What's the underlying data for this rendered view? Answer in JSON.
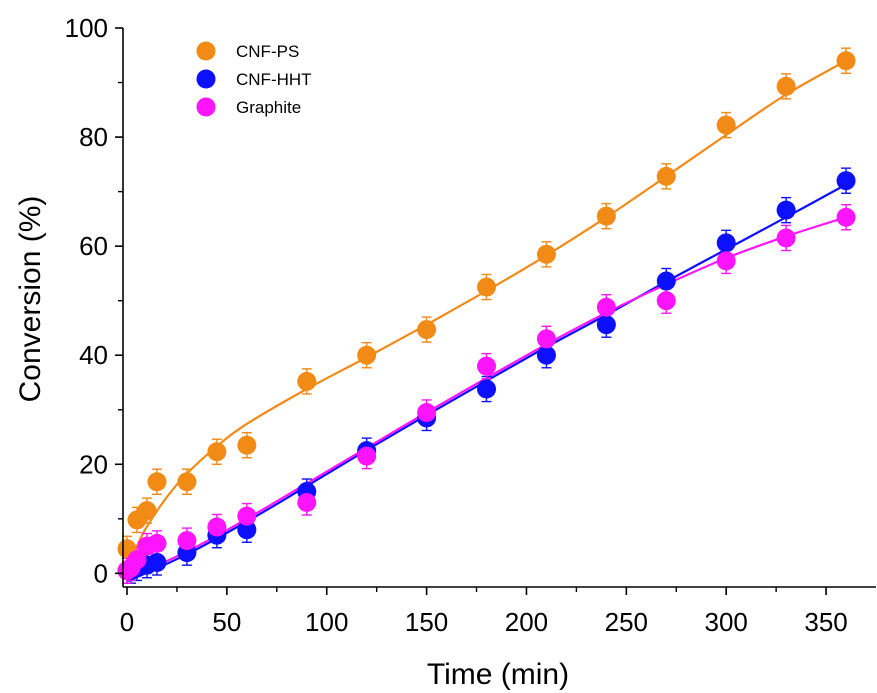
{
  "chart_data": {
    "type": "scatter",
    "title": "",
    "xlabel": "Time (min)",
    "ylabel": "Conversion (%)",
    "xlim": [
      -2,
      375
    ],
    "ylim": [
      -2.5,
      100
    ],
    "x_ticks": [
      0,
      50,
      100,
      150,
      200,
      250,
      300,
      350
    ],
    "x_tick_labels": [
      "0",
      "50",
      "100",
      "150",
      "200",
      "250",
      "300",
      "350"
    ],
    "y_ticks": [
      0,
      20,
      40,
      60,
      80,
      100
    ],
    "y_tick_labels": [
      "0",
      "20",
      "40",
      "60",
      "80",
      "100"
    ],
    "grid": false,
    "legend_position": "top-left",
    "error_bar": 2.3,
    "series": [
      {
        "name": "CNF-PS",
        "color": "#f28a16",
        "x": [
          0,
          5,
          10,
          15,
          30,
          45,
          60,
          90,
          120,
          150,
          180,
          210,
          240,
          270,
          300,
          330,
          360
        ],
        "y": [
          4.5,
          9.8,
          11.5,
          16.8,
          16.8,
          22.3,
          23.5,
          35.2,
          40.0,
          44.7,
          52.5,
          58.5,
          65.5,
          72.8,
          82.2,
          89.3,
          94.0
        ],
        "fit_x": [
          0,
          5,
          10,
          20,
          30,
          45,
          60,
          90,
          120,
          150,
          180,
          210,
          240,
          270,
          300,
          330,
          360
        ],
        "fit_y": [
          0.8,
          5.0,
          8.6,
          14.0,
          18.3,
          23.3,
          27.4,
          33.8,
          39.6,
          45.6,
          51.8,
          58.3,
          65.3,
          72.8,
          80.4,
          87.8,
          94.0
        ]
      },
      {
        "name": "CNF-HHT",
        "color": "#0c10ff",
        "x": [
          0,
          2,
          5,
          10,
          15,
          30,
          45,
          60,
          90,
          120,
          150,
          180,
          210,
          240,
          270,
          300,
          330,
          360
        ],
        "y": [
          0.5,
          0.5,
          1.0,
          1.5,
          2.0,
          3.8,
          7.0,
          8.0,
          15.0,
          22.5,
          28.5,
          33.8,
          40.0,
          45.6,
          53.6,
          60.6,
          66.6,
          72.0
        ],
        "fit_x": [
          0,
          30,
          60,
          90,
          120,
          150,
          180,
          210,
          240,
          270,
          300,
          330,
          360
        ],
        "fit_y": [
          -1.5,
          3.5,
          9.5,
          16.0,
          22.6,
          29.0,
          35.3,
          41.5,
          47.4,
          53.5,
          59.4,
          65.3,
          71.3
        ]
      },
      {
        "name": "Graphite",
        "color": "#ff14ff",
        "x": [
          0,
          2,
          5,
          10,
          15,
          30,
          45,
          60,
          90,
          120,
          150,
          180,
          210,
          240,
          270,
          300,
          330,
          360
        ],
        "y": [
          0.5,
          1.0,
          2.5,
          5.0,
          5.5,
          6.0,
          8.5,
          10.5,
          13.0,
          21.5,
          29.5,
          38.0,
          43.0,
          48.8,
          50.0,
          57.3,
          61.5,
          65.3
        ],
        "fit_x": [
          0,
          30,
          60,
          90,
          120,
          150,
          180,
          210,
          240,
          270,
          300,
          330,
          360
        ],
        "fit_y": [
          -1.0,
          4.0,
          10.0,
          16.5,
          23.0,
          29.5,
          35.8,
          42.0,
          47.8,
          53.0,
          57.8,
          61.8,
          65.3
        ]
      }
    ]
  }
}
